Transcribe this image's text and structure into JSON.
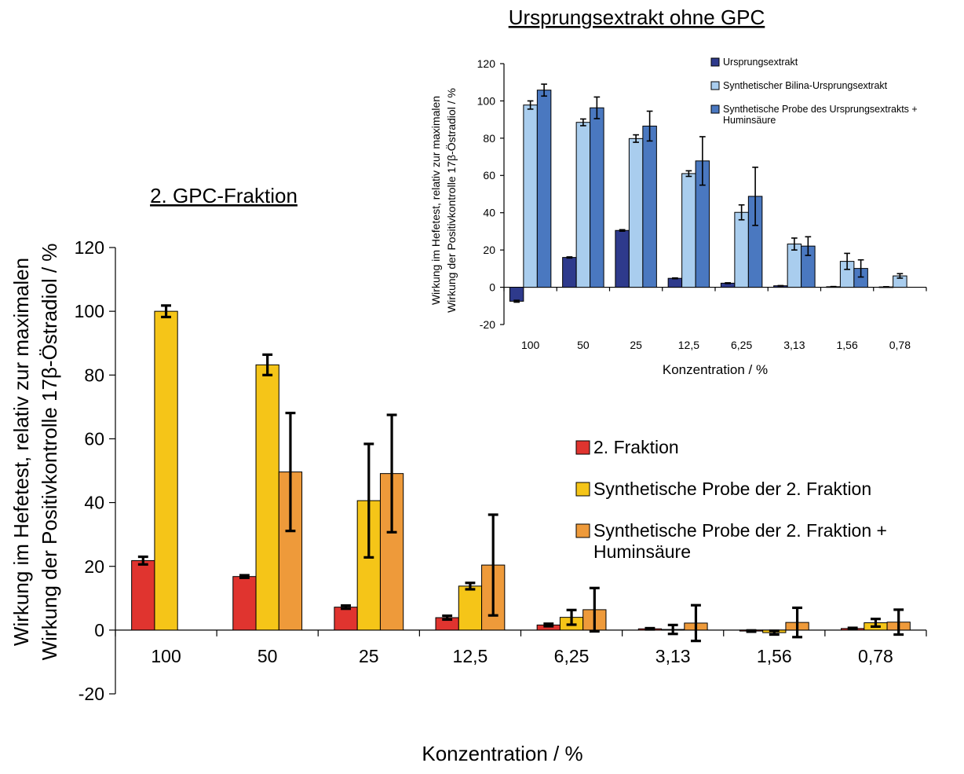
{
  "chart_data": [
    {
      "type": "bar",
      "title": "2. GPC-Fraktion",
      "xlabel": "Konzentration / %",
      "ylabel_line1": "Wirkung im Hefetest, relativ zur maximalen",
      "ylabel_line2": "Wirkung der Positivkontrolle 17β-Östradiol / %",
      "ylim": [
        -20,
        120
      ],
      "yticks": [
        "-20",
        "0",
        "20",
        "40",
        "60",
        "80",
        "100",
        "120"
      ],
      "categories": [
        "100",
        "50",
        "25",
        "12,5",
        "6,25",
        "3,13",
        "1,56",
        "0,78"
      ],
      "grid": false,
      "legend_position": "right",
      "series": [
        {
          "name": "2. Fraktion",
          "color": "#e0342f",
          "values": [
            21.8,
            16.8,
            7.2,
            3.9,
            1.6,
            0.4,
            -0.3,
            0.5
          ],
          "errors": [
            1.2,
            0.4,
            0.5,
            0.6,
            0.4,
            0.2,
            0.2,
            0.2
          ]
        },
        {
          "name": "Synthetische Probe der 2. Fraktion",
          "color": "#f5c518",
          "values": [
            100,
            83.2,
            40.6,
            13.8,
            4.0,
            0.2,
            -0.8,
            2.3
          ],
          "errors": [
            1.8,
            3.2,
            17.8,
            1.0,
            2.3,
            1.4,
            0.6,
            1.2
          ]
        },
        {
          "name": "Synthetische Probe der 2. Fraktion + Huminsäure",
          "color": "#ee9a3a",
          "values": [
            null,
            49.6,
            49.1,
            20.4,
            6.4,
            2.2,
            2.4,
            2.5
          ],
          "errors": [
            null,
            18.5,
            18.4,
            15.8,
            6.8,
            5.6,
            4.6,
            3.9
          ]
        }
      ],
      "legend_lines": [
        [
          "2. Fraktion"
        ],
        [
          "Synthetische Probe der 2. Fraktion"
        ],
        [
          "Synthetische Probe der 2. Fraktion +",
          "Huminsäure"
        ]
      ]
    },
    {
      "type": "bar",
      "title": "Ursprungsextrakt ohne GPC",
      "xlabel": "Konzentration / %",
      "ylabel_line1": "Wirkung im Hefetest, relativ zur maximalen",
      "ylabel_line2": "Wirkung der Positivkontrolle 17β-Östradiol / %",
      "ylim": [
        -20,
        120
      ],
      "yticks": [
        "-20",
        "0",
        "20",
        "40",
        "60",
        "80",
        "100",
        "120"
      ],
      "categories": [
        "100",
        "50",
        "25",
        "12,5",
        "6,25",
        "3,13",
        "1,56",
        "0,78"
      ],
      "grid": false,
      "legend_position": "top-right",
      "series": [
        {
          "name": "Ursprungsextrakt",
          "color": "#2e3a8c",
          "values": [
            -7.5,
            16,
            30.5,
            4.8,
            2.2,
            0.8,
            0.3,
            0.2
          ],
          "errors": [
            0.5,
            0.3,
            0.4,
            0.2,
            0.2,
            0.1,
            0.1,
            0.1
          ]
        },
        {
          "name": "Synthetischer Bilina-Ursprungsextrakt",
          "color": "#a9cdee",
          "values": [
            97.8,
            88.5,
            79.8,
            61,
            40.2,
            23.2,
            13.9,
            6.1
          ],
          "errors": [
            2.2,
            1.8,
            2.0,
            1.5,
            4.0,
            3.2,
            4.3,
            1.2
          ]
        },
        {
          "name": "Synthetische Probe des Ursprungsextrakts + Huminsäure",
          "color": "#4a78c0",
          "values": [
            105.8,
            96.3,
            86.5,
            67.8,
            48.8,
            22.1,
            10.1,
            null
          ],
          "errors": [
            3.2,
            5.8,
            8.0,
            13.0,
            15.6,
            5.0,
            4.6,
            null
          ]
        }
      ],
      "legend_lines": [
        [
          "Ursprungsextrakt"
        ],
        [
          "Synthetischer Bilina-Ursprungsextrakt"
        ],
        [
          "Synthetische Probe des Ursprungsextrakts +",
          "Huminsäure"
        ]
      ]
    }
  ]
}
